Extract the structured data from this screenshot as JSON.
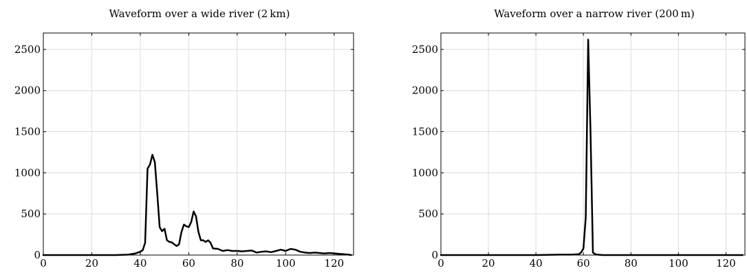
{
  "chart_data": [
    {
      "type": "line",
      "title": "Waveform over a wide river (2 km)",
      "xlabel": "",
      "ylabel": "",
      "xlim": [
        0,
        128
      ],
      "ylim": [
        0,
        2700
      ],
      "xticks": [
        0,
        20,
        40,
        60,
        80,
        100,
        120
      ],
      "yticks": [
        0,
        500,
        1000,
        1500,
        2000,
        2500
      ],
      "grid": true,
      "series": [
        {
          "x": [
            0,
            10,
            20,
            30,
            35,
            38,
            40,
            41,
            42,
            43,
            44,
            45,
            46,
            47,
            48,
            49,
            50,
            51,
            52,
            53,
            54,
            55,
            56,
            57,
            58,
            59,
            60,
            61,
            62,
            63,
            64,
            65,
            66,
            67,
            68,
            69,
            70,
            72,
            74,
            76,
            78,
            80,
            82,
            84,
            86,
            88,
            90,
            92,
            94,
            96,
            98,
            100,
            102,
            104,
            106,
            108,
            110,
            112,
            114,
            116,
            118,
            120,
            122,
            124,
            126,
            127
          ],
          "y": [
            0,
            0,
            0,
            0,
            5,
            20,
            40,
            60,
            150,
            1050,
            1100,
            1220,
            1130,
            750,
            340,
            290,
            320,
            180,
            160,
            155,
            130,
            110,
            130,
            280,
            370,
            350,
            340,
            400,
            530,
            470,
            280,
            180,
            180,
            160,
            180,
            150,
            80,
            75,
            50,
            60,
            50,
            50,
            45,
            50,
            55,
            30,
            40,
            45,
            35,
            50,
            65,
            50,
            75,
            65,
            40,
            30,
            25,
            30,
            25,
            20,
            25,
            20,
            15,
            10,
            5,
            0
          ]
        }
      ]
    },
    {
      "type": "line",
      "title": "Waveform over a narrow river (200 m)",
      "xlabel": "",
      "ylabel": "",
      "xlim": [
        0,
        128
      ],
      "ylim": [
        0,
        2700
      ],
      "xticks": [
        0,
        20,
        40,
        60,
        80,
        100,
        120
      ],
      "yticks": [
        0,
        500,
        1000,
        1500,
        2000,
        2500
      ],
      "grid": true,
      "series": [
        {
          "x": [
            0,
            40,
            50,
            55,
            58,
            59,
            60,
            61,
            62,
            63,
            64,
            65,
            66,
            68,
            70,
            80,
            100,
            120,
            127
          ],
          "y": [
            0,
            0,
            5,
            5,
            10,
            30,
            80,
            460,
            2620,
            1500,
            30,
            10,
            5,
            0,
            0,
            0,
            0,
            0,
            0
          ]
        }
      ]
    }
  ]
}
